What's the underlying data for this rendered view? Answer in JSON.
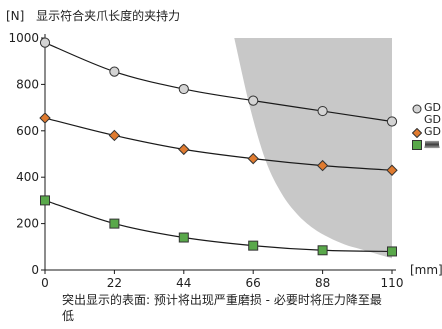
{
  "header": {
    "unit": "[N]",
    "title": "显示符合夹爪长度的夹持力"
  },
  "note": {
    "text": "突出显示的表面: 预计将出现严重磨损 - 必要时将压力降至最低"
  },
  "colors": {
    "series_1": "#d4d4d4",
    "series_2": "#e07b2f",
    "series_3": "#59a84a",
    "shaded": "#c8c8c8",
    "line": "#1a1a1a",
    "axis": "#1a1a1a"
  },
  "legend": {
    "items": [
      {
        "label": "GD",
        "marker": "circle"
      },
      {
        "label": "GD",
        "marker": "none"
      },
      {
        "label": "GD",
        "marker": "diamond"
      },
      {
        "label": "",
        "marker": "square",
        "icon": "spring-icon"
      }
    ]
  },
  "chart_data": {
    "type": "line",
    "title": "显示符合夹爪长度的夹持力",
    "xlabel": "[mm]",
    "ylabel": "[N]",
    "x": [
      0,
      22,
      44,
      66,
      88,
      110
    ],
    "xlim": [
      0,
      110
    ],
    "ylim": [
      0,
      1000
    ],
    "xticks": [
      0,
      22,
      44,
      66,
      88,
      110
    ],
    "yticks": [
      0,
      200,
      400,
      600,
      800,
      1000
    ],
    "grid": false,
    "legend_position": "right",
    "series": [
      {
        "name": "GD",
        "marker": "circle",
        "color": "#d4d4d4",
        "values": [
          980,
          855,
          780,
          730,
          685,
          640
        ]
      },
      {
        "name": "GD",
        "marker": "diamond",
        "color": "#e07b2f",
        "values": [
          655,
          580,
          520,
          480,
          450,
          430
        ]
      },
      {
        "name": "",
        "marker": "square",
        "color": "#59a84a",
        "values": [
          300,
          200,
          140,
          105,
          85,
          80
        ]
      }
    ],
    "shaded_region": {
      "description": "wear area",
      "upper_y": 1000,
      "x": [
        60,
        65,
        70,
        75,
        80,
        85,
        90,
        95,
        100,
        105,
        110
      ],
      "lower_y": [
        1000,
        700,
        470,
        330,
        240,
        180,
        140,
        110,
        90,
        70,
        50
      ]
    }
  }
}
